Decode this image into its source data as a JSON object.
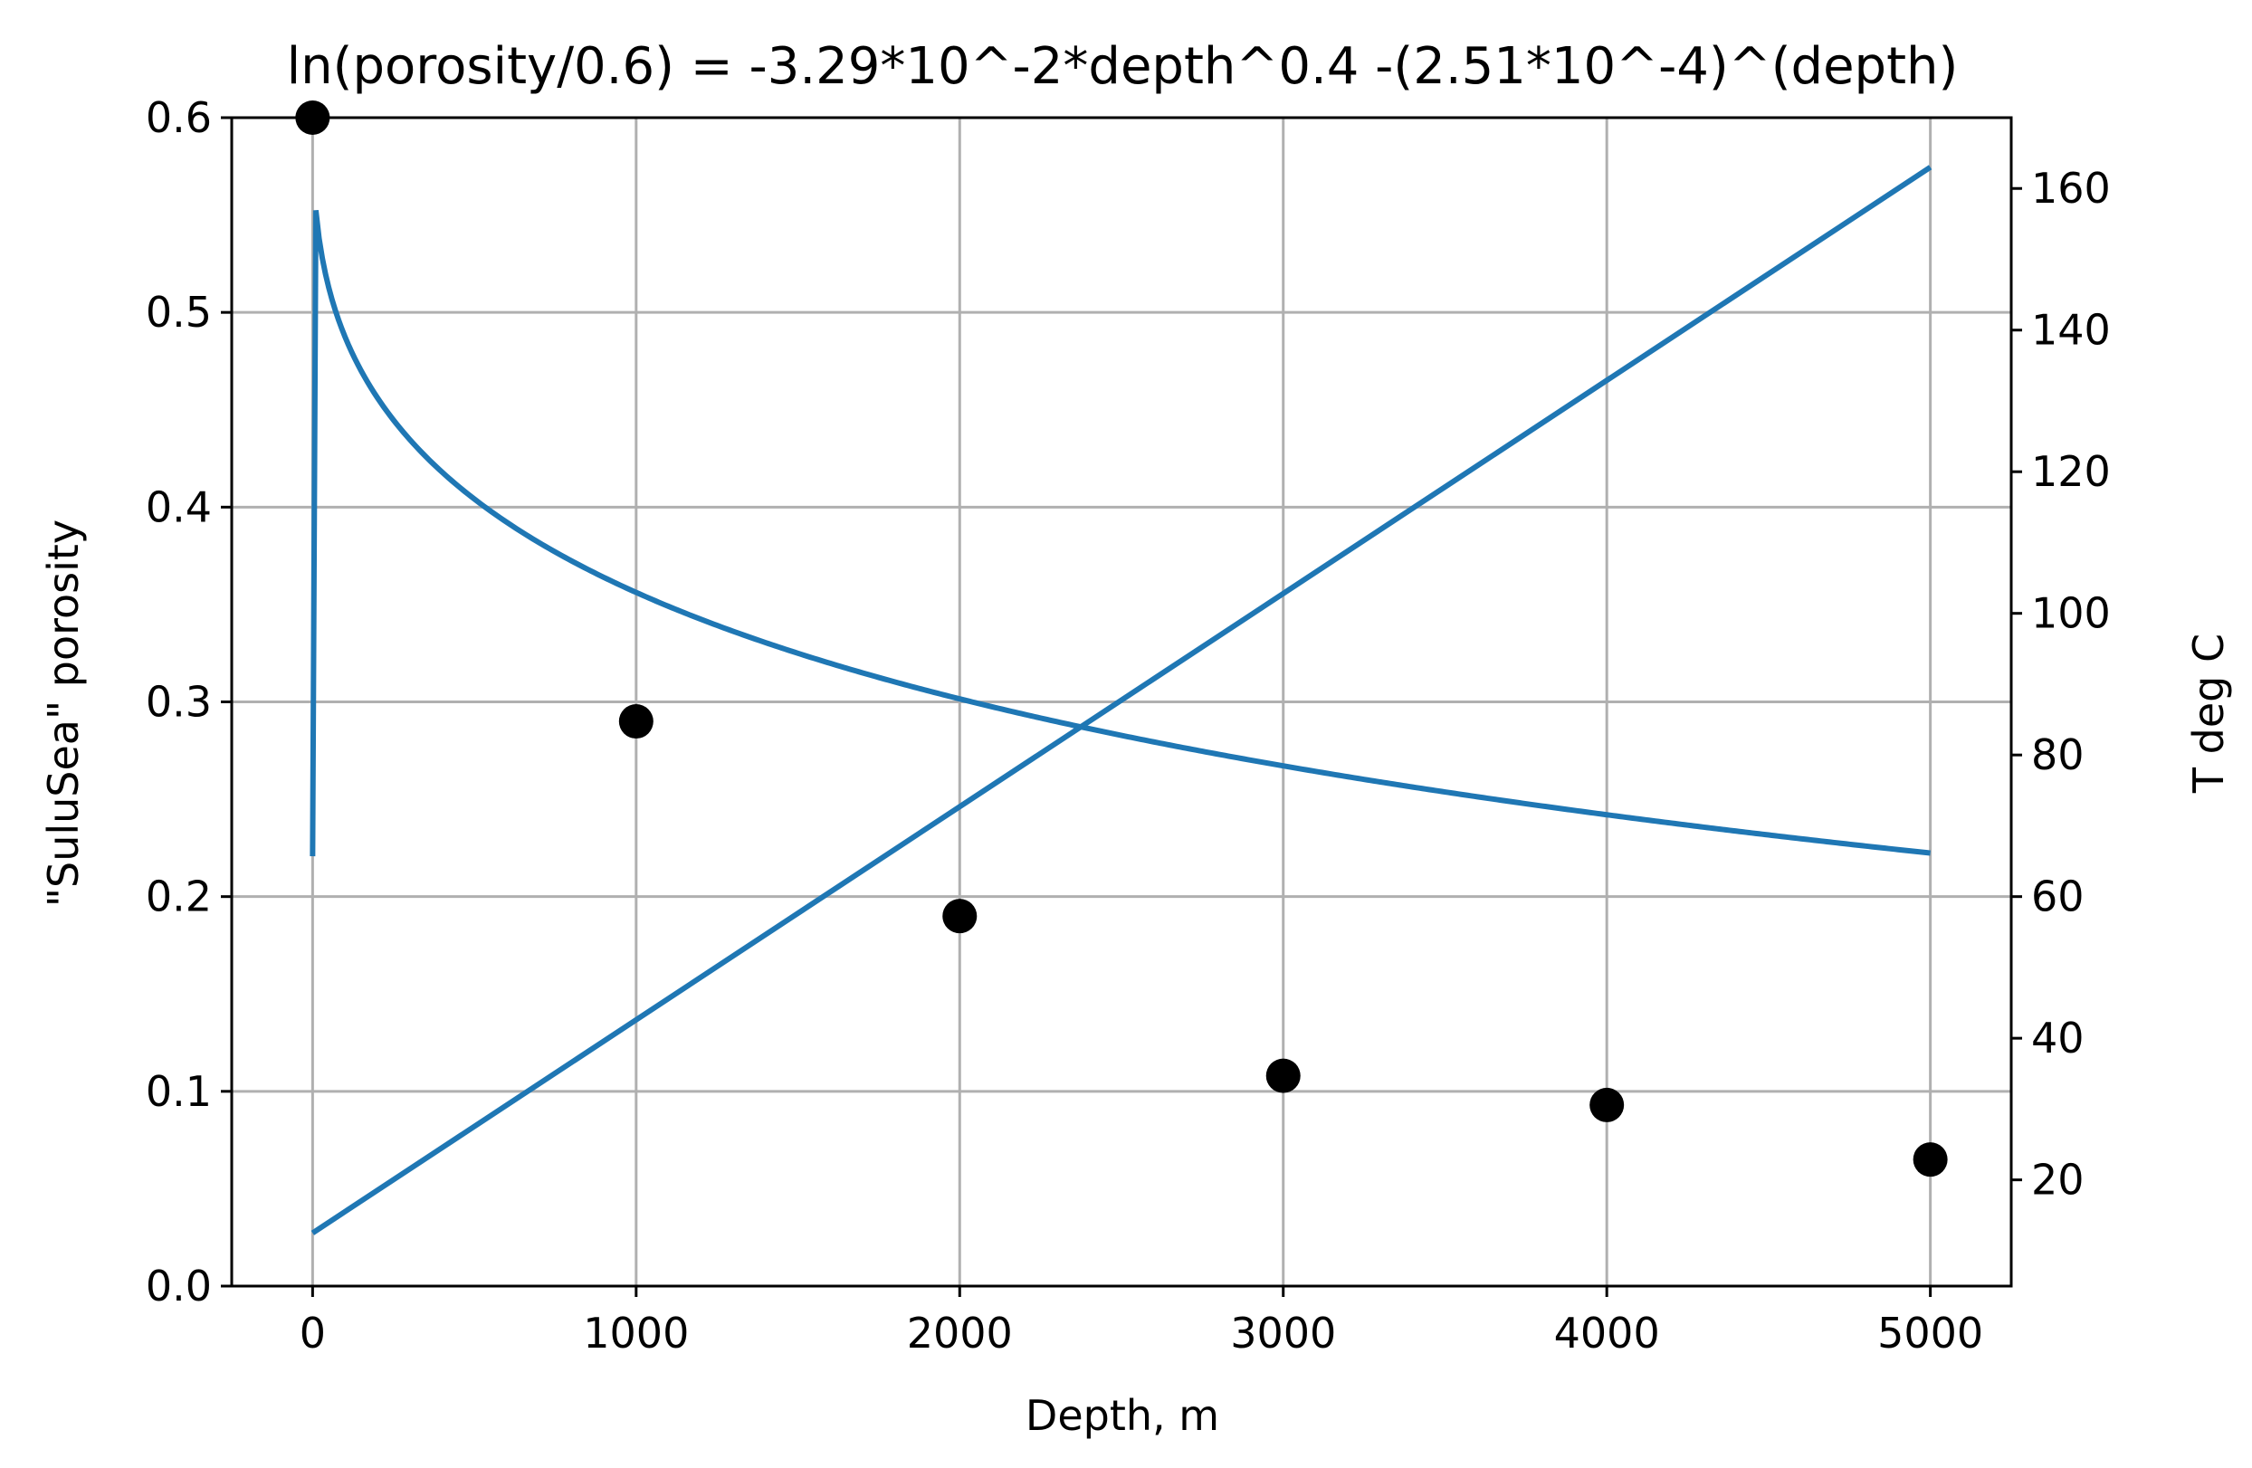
{
  "chart_data": {
    "type": "line",
    "title": "ln(porosity/0.6) = -3.29*10^-2*depth^0.4  -(2.51*10^-4)^(depth)",
    "xlabel": "Depth, m",
    "ylabel": "\"SuluSea\" porosity",
    "y2label": "T deg C",
    "xlim": [
      -250,
      5250
    ],
    "ylim": [
      0.0,
      0.6
    ],
    "y2lim": [
      5,
      170
    ],
    "grid": true,
    "x_ticks": [
      0,
      1000,
      2000,
      3000,
      4000,
      5000
    ],
    "x_tick_labels": [
      "0",
      "1000",
      "2000",
      "3000",
      "4000",
      "5000"
    ],
    "y_ticks": [
      0.0,
      0.1,
      0.2,
      0.3,
      0.4,
      0.5,
      0.6
    ],
    "y_tick_labels": [
      "0.0",
      "0.1",
      "0.2",
      "0.3",
      "0.4",
      "0.5",
      "0.6"
    ],
    "y2_ticks": [
      20,
      40,
      60,
      80,
      100,
      120,
      140,
      160
    ],
    "y2_tick_labels": [
      "20",
      "40",
      "60",
      "80",
      "100",
      "120",
      "140",
      "160"
    ],
    "series": [
      {
        "kind": "scatter",
        "axis": "left",
        "color": "#000000",
        "x": [
          0,
          1000,
          2000,
          3000,
          4000,
          5000
        ],
        "y": [
          0.6,
          0.29,
          0.19,
          0.108,
          0.093,
          0.065
        ]
      },
      {
        "kind": "line",
        "axis": "left",
        "color": "#1f77b4",
        "formula": "porosity = 0.6*exp(-3.29e-2*depth^0.4 - (2.51e-4)^depth)"
      },
      {
        "kind": "line",
        "axis": "right",
        "color": "#1f77b4",
        "x": [
          0,
          5000
        ],
        "y": [
          12.5,
          163
        ]
      }
    ]
  }
}
